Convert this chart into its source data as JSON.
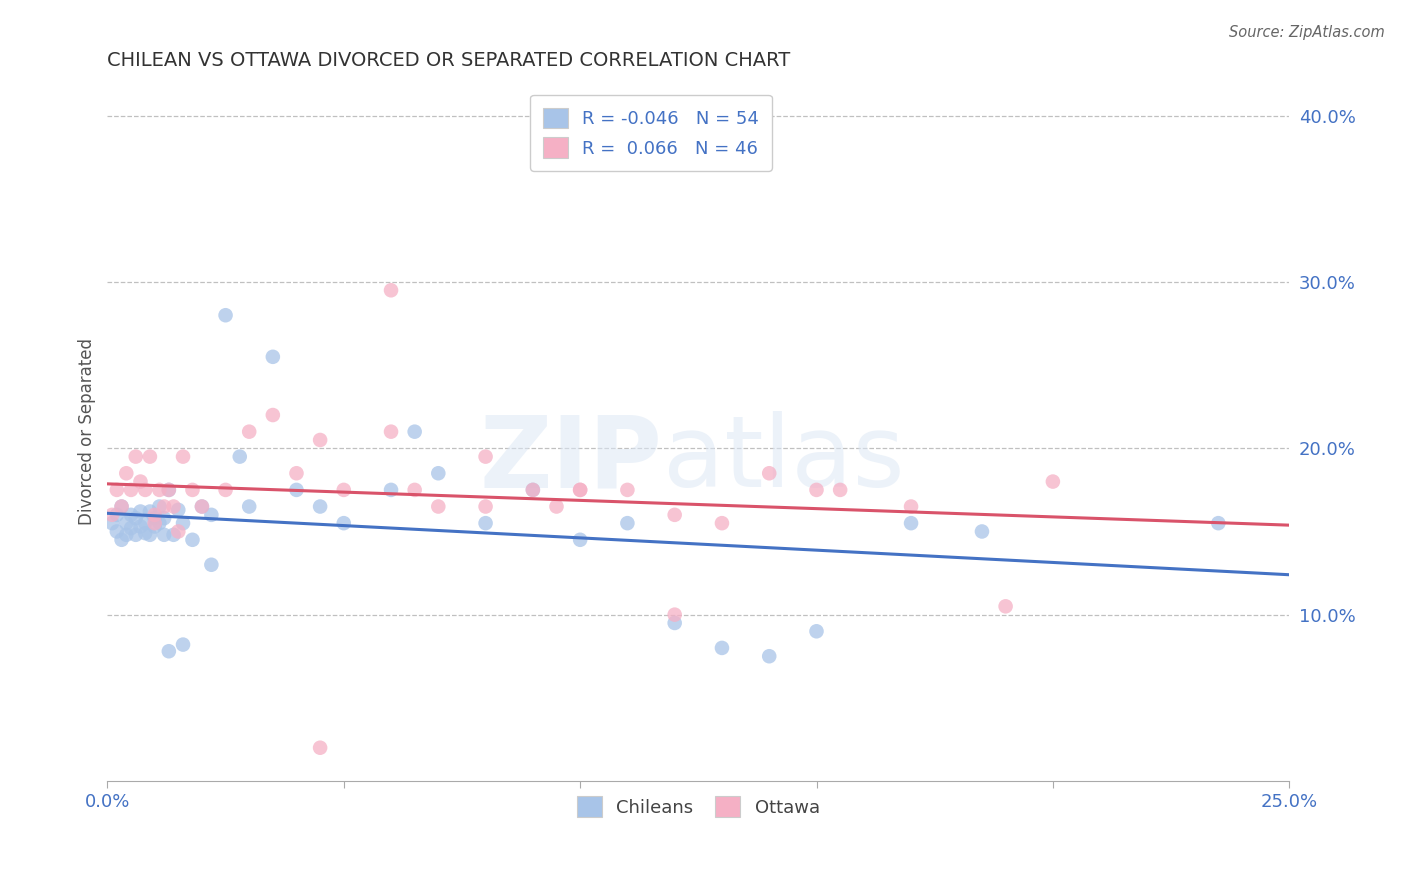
{
  "title": "CHILEAN VS OTTAWA DIVORCED OR SEPARATED CORRELATION CHART",
  "source": "Source: ZipAtlas.com",
  "ylabel": "Divorced or Separated",
  "xlim": [
    0.0,
    0.25
  ],
  "ylim": [
    0.0,
    0.42
  ],
  "yticks": [
    0.1,
    0.2,
    0.3,
    0.4
  ],
  "ytick_labels": [
    "10.0%",
    "20.0%",
    "30.0%",
    "40.0%"
  ],
  "xtick_labels": [
    "0.0%",
    "",
    "",
    "",
    "",
    "25.0%"
  ],
  "legend_label1_r": "-0.046",
  "legend_label1_n": "54",
  "legend_label2_r": "0.066",
  "legend_label2_n": "46",
  "legend_bottom_label1": "Chileans",
  "legend_bottom_label2": "Ottawa",
  "R_chilean": -0.046,
  "N_chilean": 54,
  "R_ottawa": 0.066,
  "N_ottawa": 46,
  "color_chilean": "#a8c4e8",
  "color_ottawa": "#f5b0c5",
  "line_color_chilean": "#4472c4",
  "line_color_ottawa": "#d9536a",
  "background_color": "#ffffff",
  "watermark_zip": "ZIP",
  "watermark_atlas": "atlas",
  "chilean_x": [
    0.001,
    0.002,
    0.002,
    0.003,
    0.003,
    0.004,
    0.004,
    0.005,
    0.005,
    0.006,
    0.006,
    0.007,
    0.007,
    0.008,
    0.008,
    0.009,
    0.009,
    0.01,
    0.01,
    0.011,
    0.011,
    0.012,
    0.012,
    0.013,
    0.014,
    0.015,
    0.016,
    0.018,
    0.02,
    0.022,
    0.025,
    0.028,
    0.03,
    0.035,
    0.04,
    0.045,
    0.05,
    0.06,
    0.065,
    0.07,
    0.08,
    0.09,
    0.1,
    0.11,
    0.12,
    0.13,
    0.14,
    0.15,
    0.17,
    0.185,
    0.013,
    0.016,
    0.022,
    0.235
  ],
  "chilean_y": [
    0.155,
    0.16,
    0.15,
    0.165,
    0.145,
    0.155,
    0.148,
    0.16,
    0.152,
    0.158,
    0.148,
    0.153,
    0.162,
    0.149,
    0.155,
    0.162,
    0.148,
    0.158,
    0.153,
    0.165,
    0.155,
    0.148,
    0.158,
    0.175,
    0.148,
    0.163,
    0.155,
    0.145,
    0.165,
    0.16,
    0.28,
    0.195,
    0.165,
    0.255,
    0.175,
    0.165,
    0.155,
    0.175,
    0.21,
    0.185,
    0.155,
    0.175,
    0.145,
    0.155,
    0.095,
    0.08,
    0.075,
    0.09,
    0.155,
    0.15,
    0.078,
    0.082,
    0.13,
    0.155
  ],
  "ottawa_x": [
    0.001,
    0.002,
    0.003,
    0.004,
    0.005,
    0.006,
    0.007,
    0.008,
    0.009,
    0.01,
    0.01,
    0.011,
    0.012,
    0.013,
    0.014,
    0.015,
    0.016,
    0.018,
    0.02,
    0.025,
    0.03,
    0.035,
    0.04,
    0.045,
    0.05,
    0.06,
    0.065,
    0.07,
    0.08,
    0.09,
    0.095,
    0.1,
    0.11,
    0.12,
    0.13,
    0.14,
    0.15,
    0.06,
    0.08,
    0.1,
    0.12,
    0.155,
    0.17,
    0.19,
    0.2,
    0.045
  ],
  "ottawa_y": [
    0.16,
    0.175,
    0.165,
    0.185,
    0.175,
    0.195,
    0.18,
    0.175,
    0.195,
    0.16,
    0.155,
    0.175,
    0.165,
    0.175,
    0.165,
    0.15,
    0.195,
    0.175,
    0.165,
    0.175,
    0.21,
    0.22,
    0.185,
    0.205,
    0.175,
    0.21,
    0.175,
    0.165,
    0.195,
    0.175,
    0.165,
    0.175,
    0.175,
    0.16,
    0.155,
    0.185,
    0.175,
    0.295,
    0.165,
    0.175,
    0.1,
    0.175,
    0.165,
    0.105,
    0.18,
    0.02
  ]
}
